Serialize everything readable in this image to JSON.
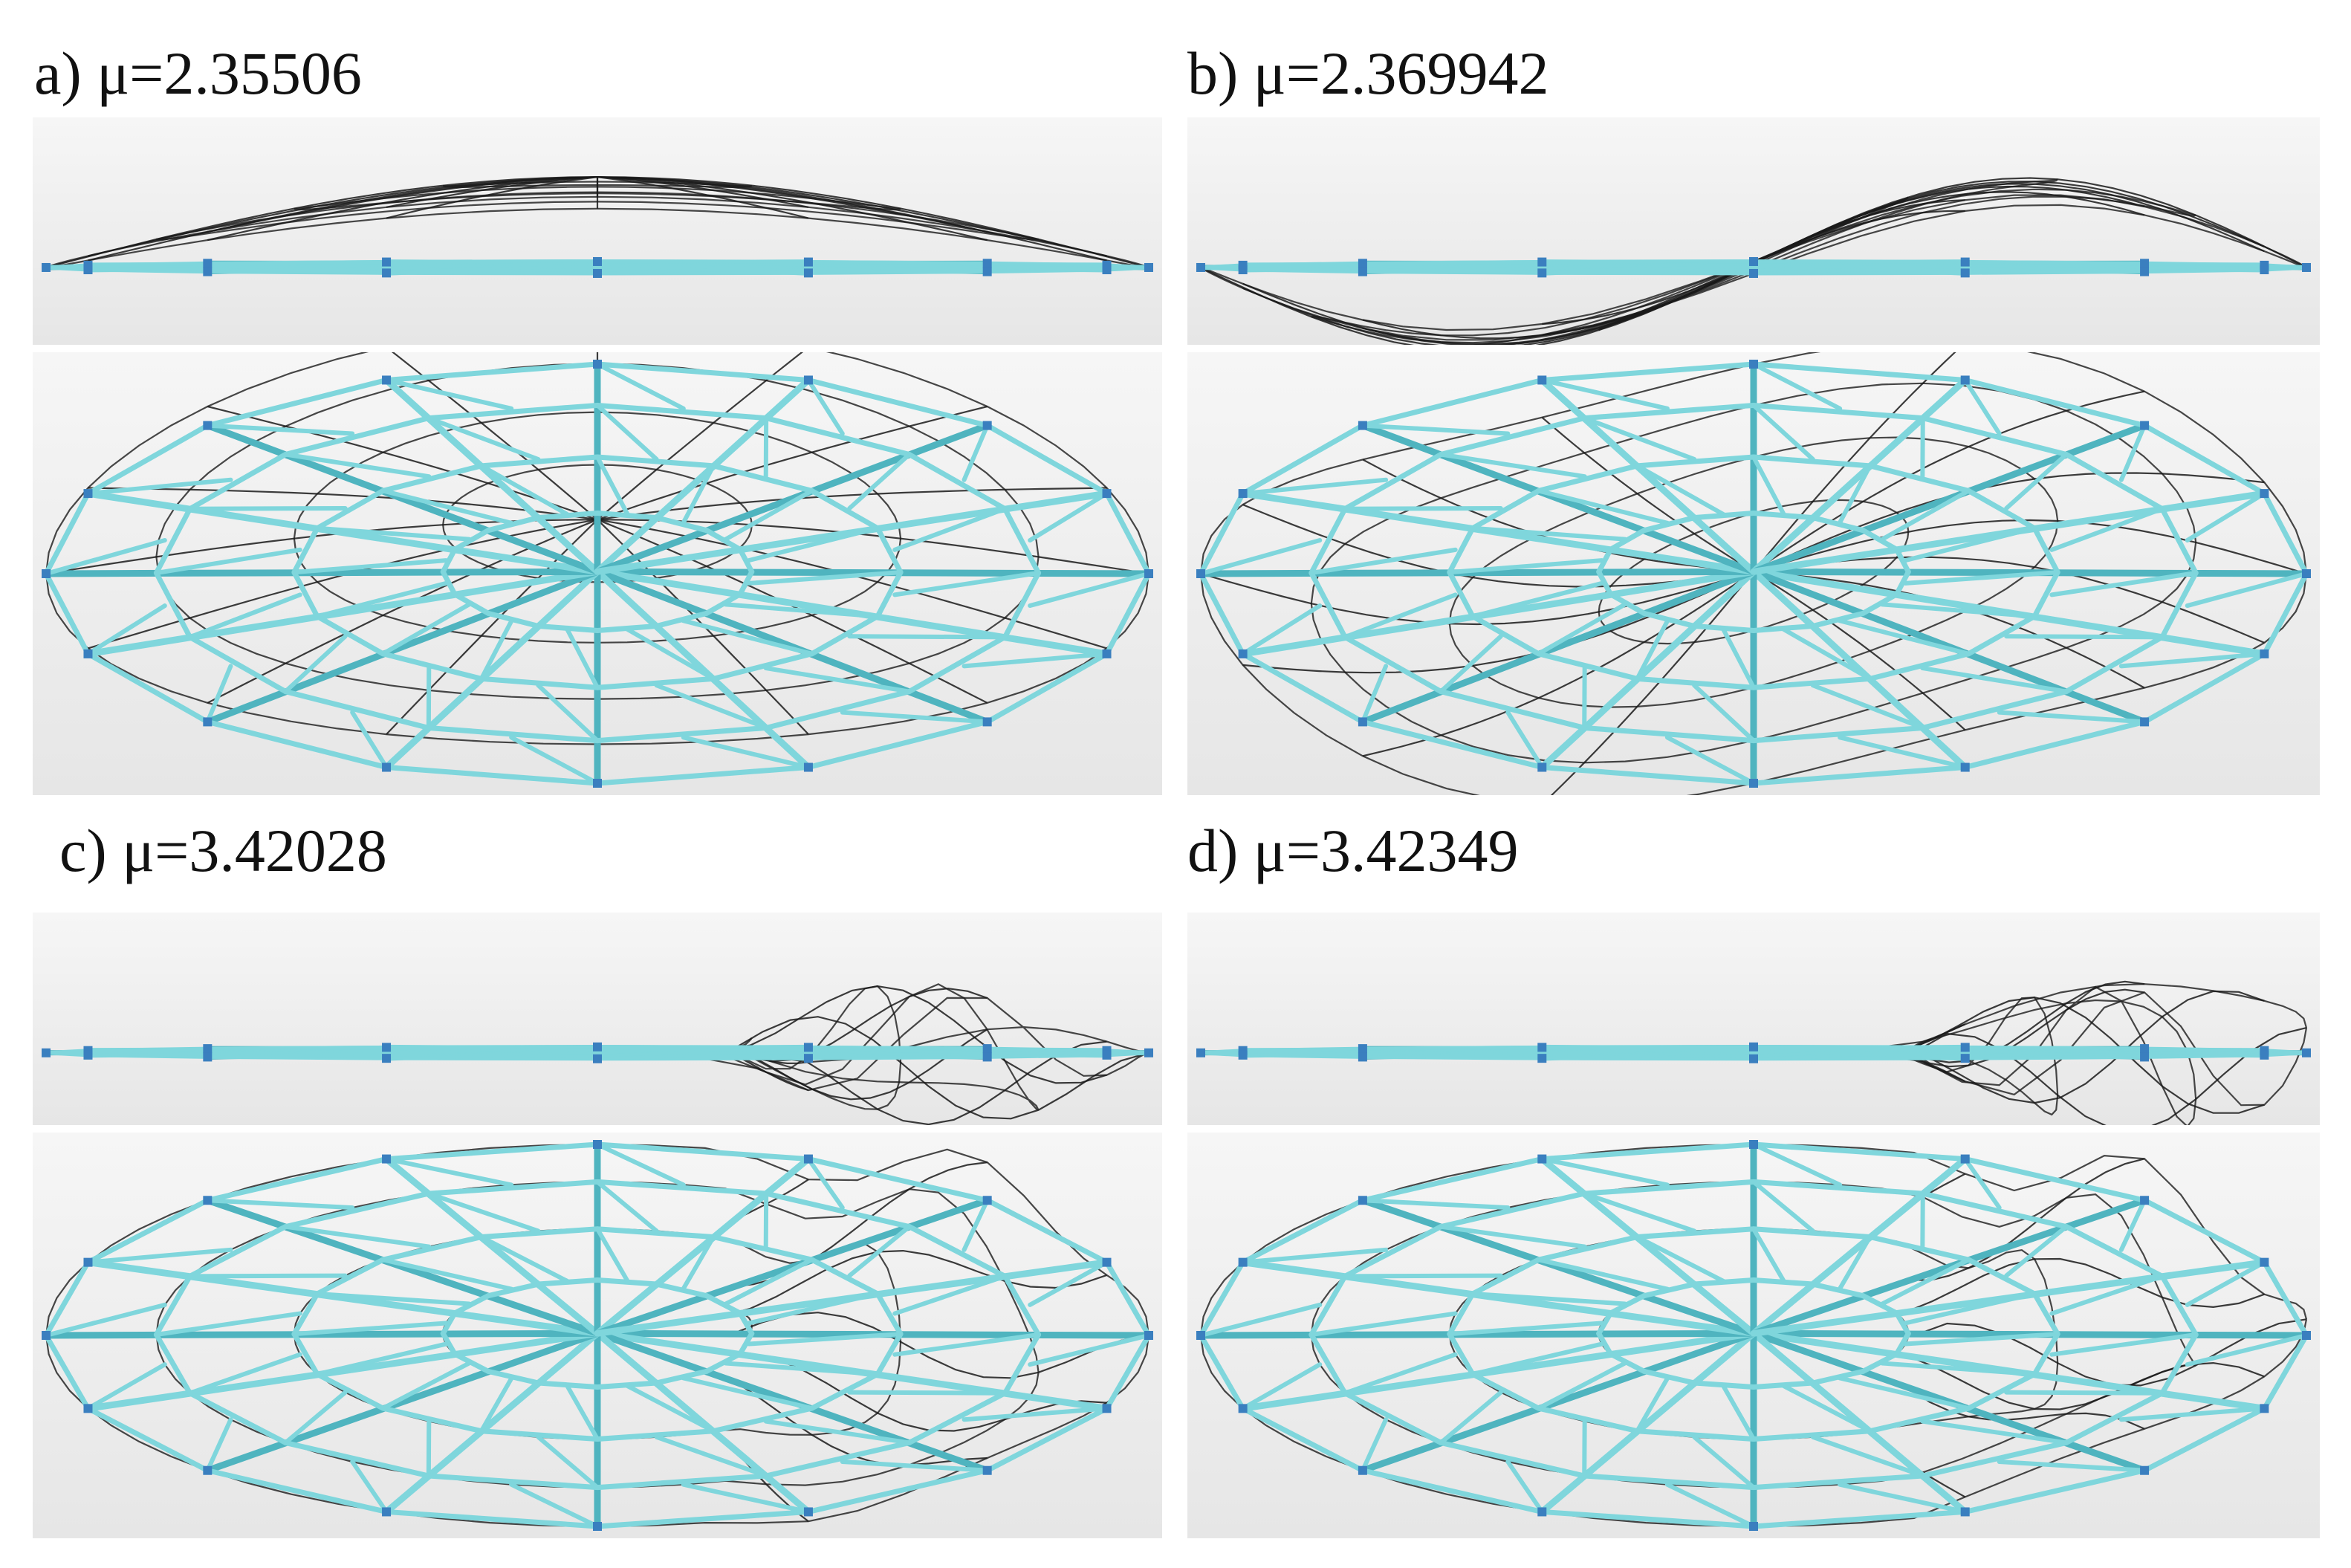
{
  "panels": [
    {
      "id": "a",
      "caption": "a) μ=2.35506",
      "mode": "symmetric"
    },
    {
      "id": "b",
      "caption": "b) μ=2.369942",
      "mode": "antisymmetric"
    },
    {
      "id": "c",
      "caption": "c) μ=3.42028",
      "mode": "local"
    },
    {
      "id": "d",
      "caption": "d) μ=3.42349",
      "mode": "local-edge"
    }
  ],
  "colors": {
    "frame_member": "#7fd6dc",
    "frame_member_dark": "#4fb4bf",
    "buckled_member": "#1a1a1a",
    "node": "#3a7fbf",
    "view_bg": "#efefef"
  }
}
